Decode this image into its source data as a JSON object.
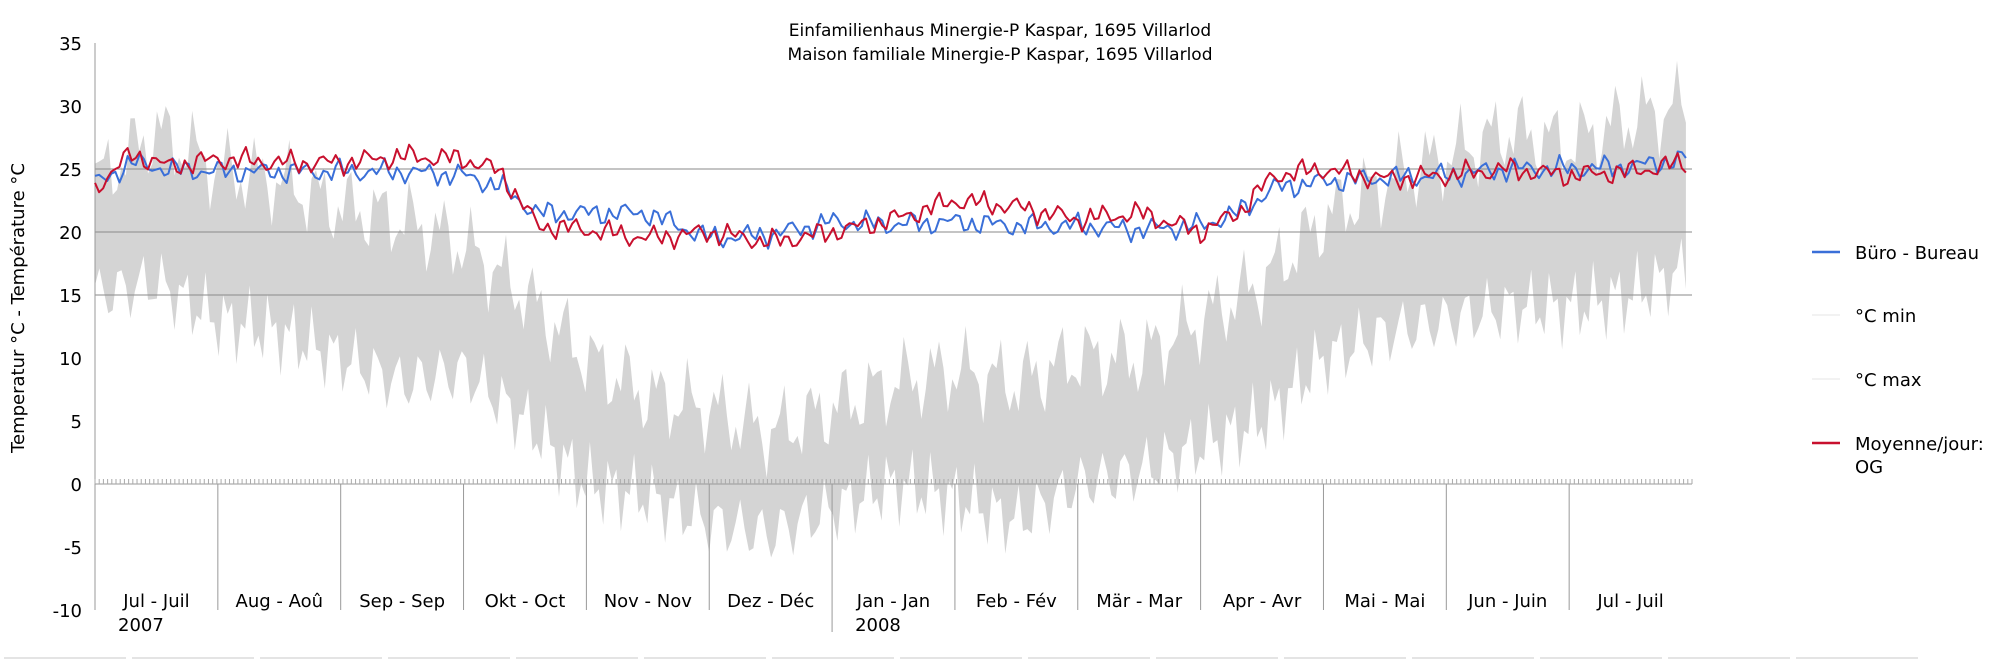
{
  "chart_data": {
    "type": "line",
    "title": "Einfamilienhaus Minergie-P Kaspar, 1695 Villarlod",
    "subtitle": "Maison familiale Minergie-P Kaspar, 1695 Villarlod",
    "ylabel": "Temperatur °C - Température °C",
    "xlabel": "",
    "ylim": [
      -10,
      35
    ],
    "yticks": [
      35,
      30,
      25,
      20,
      15,
      10,
      5,
      0,
      -5,
      -10
    ],
    "ytick_labels": [
      "35",
      "30",
      "25",
      "20",
      "15",
      "10",
      "5",
      "0",
      "-5",
      "-10"
    ],
    "grid_lines_y": [
      25,
      20,
      15
    ],
    "months": [
      {
        "label": "Jul - Juil",
        "year": "2007"
      },
      {
        "label": "Aug - Aoû",
        "year": ""
      },
      {
        "label": "Sep - Sep",
        "year": ""
      },
      {
        "label": "Okt - Oct",
        "year": ""
      },
      {
        "label": "Nov - Nov",
        "year": ""
      },
      {
        "label": "Dez - Déc",
        "year": ""
      },
      {
        "label": "Jan - Jan",
        "year": "2008"
      },
      {
        "label": "Feb - Fév",
        "year": ""
      },
      {
        "label": "Mär - Mar",
        "year": ""
      },
      {
        "label": "Apr - Avr",
        "year": ""
      },
      {
        "label": "Mai - Mai",
        "year": ""
      },
      {
        "label": "Jun - Juin",
        "year": ""
      },
      {
        "label": "Jul - Juil",
        "year": ""
      }
    ],
    "legend_position": "right",
    "series": [
      {
        "name": "Büro - Bureau",
        "color": "#3a6fd8",
        "x_month": [
          0,
          0.3,
          0.6,
          1,
          1.5,
          2,
          2.5,
          3,
          3.3,
          3.6,
          4,
          4.5,
          5,
          5.5,
          6,
          6.5,
          7,
          7.5,
          8,
          8.5,
          9,
          9.3,
          9.6,
          10,
          10.5,
          11,
          11.5,
          12,
          12.5,
          12.95
        ],
        "values": [
          23.8,
          25.5,
          25,
          24.8,
          24.8,
          24.8,
          24.8,
          24.5,
          23.6,
          21.5,
          21.5,
          21.5,
          19.5,
          19.8,
          20.8,
          20.6,
          20.8,
          20.5,
          20.5,
          20.2,
          20.5,
          21.5,
          23.5,
          24,
          24.3,
          24.5,
          25,
          25,
          25.2,
          25.8
        ]
      },
      {
        "name": "°C min",
        "color": "#f2f2f2",
        "x_month": [
          0,
          0.5,
          1,
          1.5,
          2,
          2.5,
          3,
          3.5,
          4,
          4.5,
          5,
          5.5,
          6,
          6.5,
          7,
          7.5,
          8,
          8.5,
          9,
          9.5,
          10,
          10.5,
          11,
          11.5,
          12,
          12.5,
          12.95
        ],
        "values": [
          15,
          16,
          13,
          12,
          10,
          8,
          9,
          5,
          0,
          -1,
          -3,
          -4,
          -2,
          0,
          -1,
          -3,
          0,
          1,
          3,
          5,
          10,
          12,
          13,
          14,
          14,
          15,
          17
        ]
      },
      {
        "name": "°C max",
        "color": "#f2f2f2",
        "x_month": [
          0,
          0.5,
          1,
          1.5,
          2,
          2.5,
          3,
          3.5,
          4,
          4.5,
          5,
          5.5,
          6,
          6.5,
          7,
          7.5,
          8,
          8.5,
          9,
          9.5,
          10,
          10.5,
          11,
          11.5,
          12,
          12.5,
          12.95
        ],
        "values": [
          24,
          28,
          25,
          24,
          22,
          21,
          19,
          15,
          10,
          7,
          6,
          4,
          6,
          8,
          9,
          8,
          10,
          10,
          13,
          16,
          21,
          24,
          26,
          28,
          27,
          29,
          30
        ]
      },
      {
        "name": "Moyenne/jour:",
        "name_line2": "OG",
        "color": "#c8102e",
        "x_month": [
          0,
          0.3,
          0.6,
          1,
          1.5,
          2,
          2.5,
          3,
          3.3,
          3.6,
          4,
          4.5,
          5,
          5.5,
          6,
          6.5,
          7,
          7.5,
          8,
          8.5,
          9,
          9.3,
          9.6,
          10,
          10.5,
          11,
          11.5,
          12,
          12.5,
          12.95
        ],
        "values": [
          23.5,
          26.2,
          25.2,
          25.8,
          25.5,
          25.5,
          26,
          25.8,
          24.8,
          20.5,
          20.2,
          19.5,
          20,
          19.2,
          20,
          21,
          22.5,
          22,
          21,
          21.5,
          20,
          21.5,
          24.5,
          25,
          24.2,
          24.5,
          25,
          24.5,
          24.8,
          25.5
        ]
      }
    ]
  }
}
